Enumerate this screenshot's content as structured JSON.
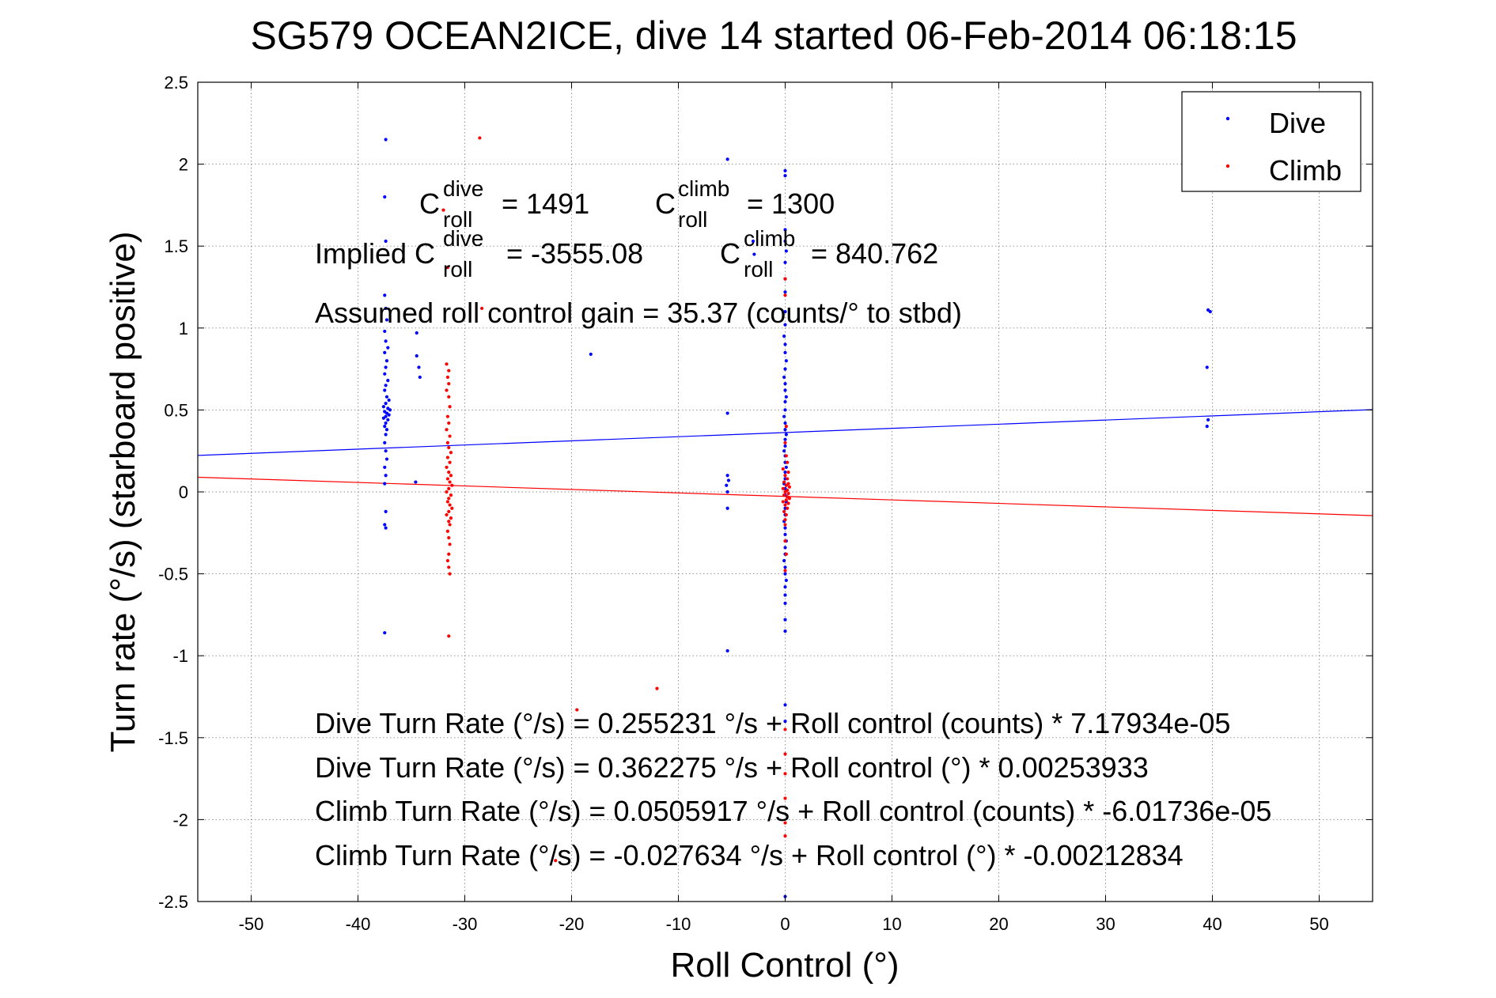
{
  "chart_data": {
    "type": "scatter",
    "title": "SG579 OCEAN2ICE, dive 14 started 06-Feb-2014 06:18:15",
    "xlabel": "Roll Control (°)",
    "ylabel": "Turn rate (°/s) (starboard positive)",
    "xlim": [
      -55,
      55
    ],
    "ylim": [
      -2.5,
      2.5
    ],
    "xticks": [
      -50,
      -40,
      -30,
      -20,
      -10,
      0,
      10,
      20,
      30,
      40,
      50
    ],
    "yticks": [
      2.5,
      2,
      1.5,
      1,
      0.5,
      0,
      -0.5,
      -1,
      -1.5,
      -2,
      -2.5
    ],
    "grid": true,
    "legend_position": "top-right",
    "series": [
      {
        "name": "Dive",
        "color": "#0000ff",
        "points": [
          [
            -37.4,
            2.15
          ],
          [
            -37.5,
            1.8
          ],
          [
            -37.4,
            1.53
          ],
          [
            -37.5,
            1.2
          ],
          [
            -37.4,
            1.12
          ],
          [
            -37.3,
            1.05
          ],
          [
            -37.5,
            0.98
          ],
          [
            -37.4,
            0.92
          ],
          [
            -37.2,
            0.88
          ],
          [
            -37.5,
            0.85
          ],
          [
            -37.3,
            0.8
          ],
          [
            -37.4,
            0.76
          ],
          [
            -37.5,
            0.72
          ],
          [
            -37.2,
            0.68
          ],
          [
            -37.4,
            0.65
          ],
          [
            -37.5,
            0.62
          ],
          [
            -37.3,
            0.58
          ],
          [
            -37.1,
            0.56
          ],
          [
            -37.4,
            0.54
          ],
          [
            -37.6,
            0.52
          ],
          [
            -37.2,
            0.51
          ],
          [
            -37.0,
            0.5
          ],
          [
            -37.5,
            0.49
          ],
          [
            -37.3,
            0.48
          ],
          [
            -37.1,
            0.47
          ],
          [
            -37.4,
            0.46
          ],
          [
            -37.6,
            0.45
          ],
          [
            -37.2,
            0.44
          ],
          [
            -37.4,
            0.42
          ],
          [
            -37.5,
            0.4
          ],
          [
            -37.3,
            0.38
          ],
          [
            -37.4,
            0.35
          ],
          [
            -37.5,
            0.3
          ],
          [
            -37.4,
            0.25
          ],
          [
            -37.3,
            0.2
          ],
          [
            -37.5,
            0.15
          ],
          [
            -37.4,
            0.1
          ],
          [
            -37.5,
            0.05
          ],
          [
            -37.4,
            -0.12
          ],
          [
            -37.5,
            -0.2
          ],
          [
            -37.4,
            -0.22
          ],
          [
            -37.5,
            -0.86
          ],
          [
            -34.5,
            0.97
          ],
          [
            -34.5,
            0.83
          ],
          [
            -34.3,
            0.76
          ],
          [
            -34.2,
            0.7
          ],
          [
            -34.6,
            0.06
          ],
          [
            -18.2,
            0.84
          ],
          [
            -5.4,
            2.03
          ],
          [
            -5.4,
            0.48
          ],
          [
            -5.4,
            0.1
          ],
          [
            -5.3,
            0.07
          ],
          [
            -5.5,
            0.04
          ],
          [
            -5.4,
            0.0
          ],
          [
            -5.4,
            -0.1
          ],
          [
            -5.4,
            -0.97
          ],
          [
            -3.0,
            1.53
          ],
          [
            -2.9,
            1.45
          ],
          [
            0.0,
            1.96
          ],
          [
            0.0,
            1.93
          ],
          [
            0.0,
            1.6
          ],
          [
            0.0,
            1.53
          ],
          [
            0.1,
            1.47
          ],
          [
            0.0,
            1.4
          ],
          [
            0.0,
            1.3
          ],
          [
            0.0,
            1.22
          ],
          [
            0.0,
            1.1
          ],
          [
            0.0,
            1.02
          ],
          [
            -0.1,
            0.95
          ],
          [
            0.0,
            0.9
          ],
          [
            0.0,
            0.85
          ],
          [
            0.1,
            0.8
          ],
          [
            0.0,
            0.75
          ],
          [
            -0.1,
            0.7
          ],
          [
            0.0,
            0.66
          ],
          [
            0.0,
            0.62
          ],
          [
            0.1,
            0.58
          ],
          [
            0.0,
            0.55
          ],
          [
            0.0,
            0.5
          ],
          [
            -0.1,
            0.46
          ],
          [
            0.0,
            0.42
          ],
          [
            0.0,
            0.38
          ],
          [
            0.1,
            0.35
          ],
          [
            0.0,
            0.32
          ],
          [
            0.0,
            0.28
          ],
          [
            -0.1,
            0.25
          ],
          [
            0.0,
            0.22
          ],
          [
            0.0,
            0.18
          ],
          [
            0.1,
            0.15
          ],
          [
            0.0,
            0.12
          ],
          [
            0.0,
            0.08
          ],
          [
            -0.1,
            0.05
          ],
          [
            0.0,
            0.02
          ],
          [
            0.0,
            -0.02
          ],
          [
            0.1,
            -0.06
          ],
          [
            0.0,
            -0.1
          ],
          [
            0.0,
            -0.14
          ],
          [
            -0.1,
            -0.18
          ],
          [
            0.0,
            -0.22
          ],
          [
            0.0,
            -0.26
          ],
          [
            0.1,
            -0.3
          ],
          [
            0.0,
            -0.34
          ],
          [
            0.0,
            -0.38
          ],
          [
            -0.1,
            -0.42
          ],
          [
            0.0,
            -0.46
          ],
          [
            0.0,
            -0.5
          ],
          [
            0.1,
            -0.54
          ],
          [
            0.0,
            -0.58
          ],
          [
            0.0,
            -0.63
          ],
          [
            0.0,
            -0.68
          ],
          [
            0.0,
            -0.78
          ],
          [
            0.0,
            -0.85
          ],
          [
            0.0,
            -1.3
          ],
          [
            0.0,
            -1.4
          ],
          [
            0.0,
            -2.47
          ],
          [
            39.6,
            1.11
          ],
          [
            39.8,
            1.1
          ],
          [
            39.5,
            0.76
          ],
          [
            39.6,
            0.44
          ],
          [
            39.5,
            0.4
          ]
        ]
      },
      {
        "name": "Climb",
        "color": "#ff0000",
        "points": [
          [
            -32.0,
            1.72
          ],
          [
            -31.6,
            1.37
          ],
          [
            -28.6,
            2.16
          ],
          [
            -28.4,
            1.12
          ],
          [
            -31.7,
            0.78
          ],
          [
            -31.5,
            0.74
          ],
          [
            -31.6,
            0.7
          ],
          [
            -31.5,
            0.66
          ],
          [
            -31.7,
            0.62
          ],
          [
            -31.5,
            0.58
          ],
          [
            -31.4,
            0.52
          ],
          [
            -31.6,
            0.46
          ],
          [
            -31.5,
            0.42
          ],
          [
            -31.7,
            0.38
          ],
          [
            -31.4,
            0.34
          ],
          [
            -31.6,
            0.3
          ],
          [
            -31.5,
            0.27
          ],
          [
            -31.3,
            0.24
          ],
          [
            -31.6,
            0.21
          ],
          [
            -31.4,
            0.18
          ],
          [
            -31.7,
            0.15
          ],
          [
            -31.5,
            0.12
          ],
          [
            -31.3,
            0.1
          ],
          [
            -31.6,
            0.08
          ],
          [
            -31.4,
            0.06
          ],
          [
            -31.2,
            0.04
          ],
          [
            -31.5,
            0.02
          ],
          [
            -31.7,
            0.0
          ],
          [
            -31.3,
            -0.02
          ],
          [
            -31.5,
            -0.04
          ],
          [
            -31.6,
            -0.06
          ],
          [
            -31.4,
            -0.08
          ],
          [
            -31.2,
            -0.1
          ],
          [
            -31.5,
            -0.12
          ],
          [
            -31.7,
            -0.14
          ],
          [
            -31.3,
            -0.16
          ],
          [
            -31.5,
            -0.18
          ],
          [
            -31.4,
            -0.2
          ],
          [
            -31.6,
            -0.24
          ],
          [
            -31.5,
            -0.28
          ],
          [
            -31.4,
            -0.32
          ],
          [
            -31.5,
            -0.38
          ],
          [
            -31.6,
            -0.42
          ],
          [
            -31.5,
            -0.46
          ],
          [
            -31.4,
            -0.5
          ],
          [
            -31.5,
            -0.88
          ],
          [
            -19.5,
            -1.33
          ],
          [
            -12.0,
            -1.2
          ],
          [
            -21.5,
            -2.25
          ],
          [
            0.0,
            1.3
          ],
          [
            0.0,
            1.2
          ],
          [
            0.1,
            0.4
          ],
          [
            0.0,
            0.3
          ],
          [
            0.1,
            0.22
          ],
          [
            0.2,
            0.18
          ],
          [
            -0.2,
            0.14
          ],
          [
            0.3,
            0.12
          ],
          [
            0.0,
            0.1
          ],
          [
            0.2,
            0.08
          ],
          [
            -0.1,
            0.06
          ],
          [
            0.3,
            0.05
          ],
          [
            0.1,
            0.04
          ],
          [
            0.4,
            0.03
          ],
          [
            -0.2,
            0.02
          ],
          [
            0.2,
            0.01
          ],
          [
            0.0,
            0.0
          ],
          [
            0.3,
            -0.01
          ],
          [
            -0.1,
            -0.02
          ],
          [
            0.2,
            -0.03
          ],
          [
            0.4,
            -0.04
          ],
          [
            0.1,
            -0.05
          ],
          [
            -0.2,
            -0.06
          ],
          [
            0.3,
            -0.07
          ],
          [
            0.0,
            -0.08
          ],
          [
            0.2,
            -0.1
          ],
          [
            -0.1,
            -0.12
          ],
          [
            0.1,
            -0.14
          ],
          [
            0.0,
            -0.17
          ],
          [
            0.0,
            -0.2
          ],
          [
            0.0,
            -0.3
          ],
          [
            0.1,
            -0.38
          ],
          [
            0.0,
            -0.48
          ],
          [
            0.0,
            -1.45
          ],
          [
            0.0,
            -1.6
          ],
          [
            0.0,
            -1.72
          ],
          [
            0.0,
            -1.87
          ],
          [
            0.0,
            -2.02
          ],
          [
            0.0,
            -2.1
          ]
        ]
      }
    ],
    "fit_lines": [
      {
        "series": "Dive",
        "color": "#0000ff",
        "intercept": 0.362275,
        "slope": 0.00253933
      },
      {
        "series": "Climb",
        "color": "#ff0000",
        "intercept": -0.027634,
        "slope": -0.00212834
      }
    ],
    "annotations": {
      "c_roll_dive": {
        "base": "C",
        "sup": "dive",
        "sub": "roll",
        "value": "= 1491"
      },
      "c_roll_climb": {
        "base": "C",
        "sup": "climb",
        "sub": "roll",
        "value": "= 1300"
      },
      "implied_prefix": "Implied C",
      "implied_dive": {
        "sup": "dive",
        "sub": "roll",
        "value": "= -3555.08"
      },
      "implied_climb": {
        "base": "C",
        "sup": "climb",
        "sub": "roll",
        "value": "= 840.762"
      },
      "gain": "Assumed roll control gain = 35.37 (counts/° to stbd)",
      "equations": [
        "Dive Turn Rate (°/s) = 0.255231 °/s + Roll control (counts) * 7.17934e-05",
        "Dive Turn Rate (°/s) = 0.362275 °/s + Roll control (°) * 0.00253933",
        "Climb Turn Rate (°/s) = 0.0505917 °/s + Roll control (counts) * -6.01736e-05",
        "Climb Turn Rate (°/s) = -0.027634 °/s + Roll control (°) * -0.00212834"
      ]
    }
  }
}
